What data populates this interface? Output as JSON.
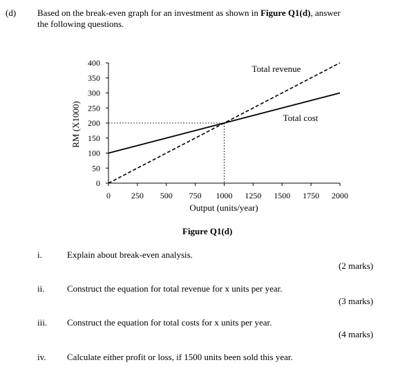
{
  "question": {
    "label": "(d)",
    "line1_pre": "Based on the break-even graph for an investment as shown in ",
    "figure_ref": "Figure Q1(d)",
    "line1_post": ", answer",
    "line2": "the following questions."
  },
  "figure": {
    "caption": "Figure Q1(d)"
  },
  "chart_data": {
    "type": "line",
    "xlabel": "Output (units/year)",
    "ylabel": "RM (X1000)",
    "xlim": [
      0,
      2000
    ],
    "ylim": [
      0,
      400
    ],
    "x_ticks": [
      "0",
      "250",
      "500",
      "750",
      "1000",
      "1250",
      "1500",
      "1750",
      "2000"
    ],
    "y_ticks": [
      "0",
      "50",
      "100",
      "150",
      "200",
      "250",
      "300",
      "350",
      "400"
    ],
    "grid": false,
    "series": [
      {
        "name": "Total revenue",
        "style": "dashed",
        "x": [
          0,
          2000
        ],
        "y": [
          0,
          400
        ]
      },
      {
        "name": "Total cost",
        "style": "solid",
        "x": [
          0,
          2000
        ],
        "y": [
          100,
          300
        ]
      }
    ],
    "break_even": {
      "x": 1000,
      "y": 200
    }
  },
  "items": [
    {
      "num": "i.",
      "text": "Explain about break-even analysis.",
      "marks": "(2 marks)"
    },
    {
      "num": "ii.",
      "text": "Construct the equation for total revenue for x units per year.",
      "marks": "(3 marks)"
    },
    {
      "num": "iii.",
      "text": "Construct the equation for total costs for x units per year.",
      "marks": "(4 marks)"
    },
    {
      "num": "iv.",
      "text": "Calculate either profit or loss, if 1500 units been sold this year.",
      "marks": ""
    }
  ]
}
